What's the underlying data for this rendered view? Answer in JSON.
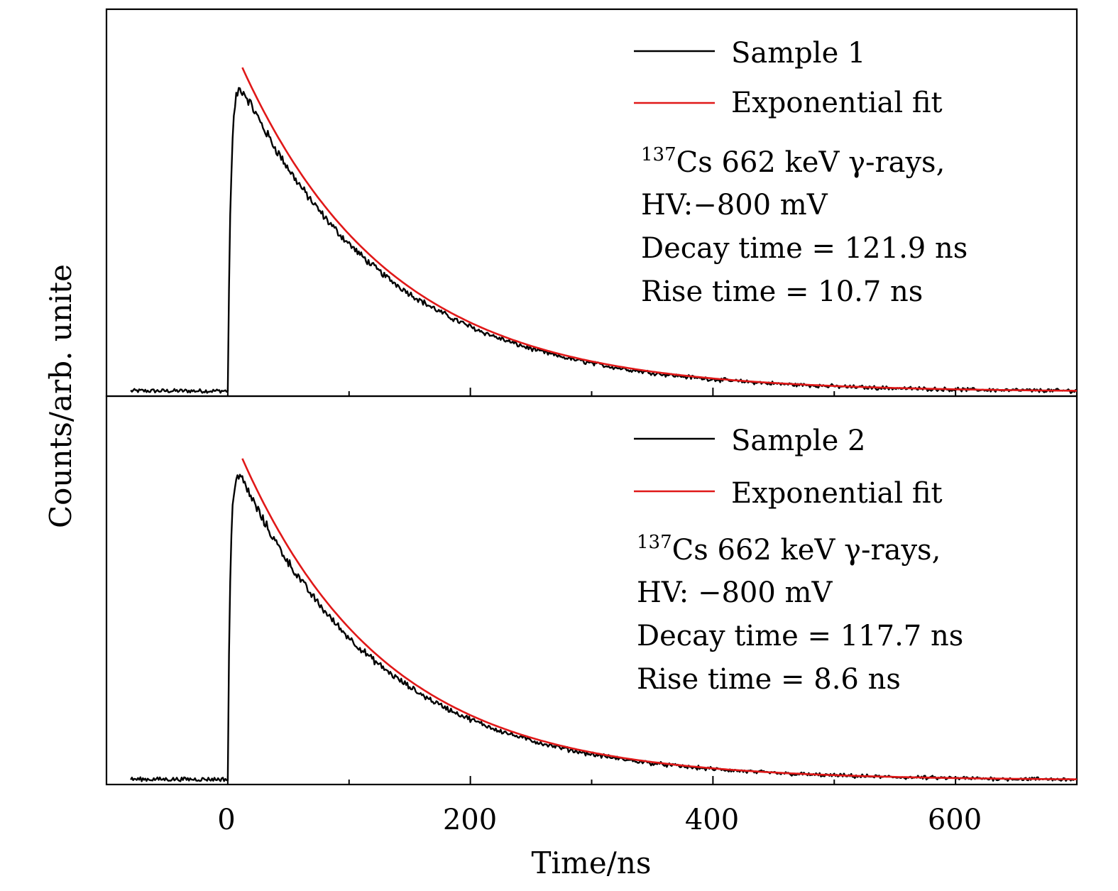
{
  "chart_data": {
    "type": "line",
    "xlabel": "Time/ns",
    "ylabel": "Counts/arb. unite",
    "xlim": [
      -100,
      700
    ],
    "xticks": [
      0,
      200,
      400,
      600
    ],
    "xtick_labels": [
      "0",
      "200",
      "400",
      "600"
    ],
    "x_minor_ticks": [
      100,
      300,
      500
    ],
    "ylim": [
      0,
      1
    ],
    "panels": [
      {
        "id": "top",
        "series": [
          {
            "name": "Sample 1",
            "color": "#000000",
            "kind": "measured",
            "baseline_start": -80,
            "onset": 0,
            "rise_time": 10.7,
            "decay_time": 121.9,
            "x_end": 700,
            "peak": 0.94
          },
          {
            "name": "Exponential fit",
            "color": "#e01818",
            "kind": "fit",
            "x_start": 12,
            "decay_time": 121.9,
            "x_end": 700,
            "start_value": 0.97
          }
        ],
        "annotation": {
          "source_sup": "137",
          "source_rest": "Cs 662 keV γ-rays,",
          "hv": "HV:−800 mV",
          "decay": "Decay time = 121.9 ns",
          "rise": "Rise time = 10.7 ns"
        }
      },
      {
        "id": "bottom",
        "series": [
          {
            "name": "Sample 2",
            "color": "#000000",
            "kind": "measured",
            "baseline_start": -80,
            "onset": 0,
            "rise_time": 8.6,
            "decay_time": 117.7,
            "x_end": 700,
            "peak": 0.93
          },
          {
            "name": "Exponential fit",
            "color": "#e01818",
            "kind": "fit",
            "x_start": 12,
            "decay_time": 117.7,
            "x_end": 700,
            "start_value": 0.96
          }
        ],
        "annotation": {
          "source_sup": "137",
          "source_rest": "Cs 662 keV γ-rays,",
          "hv": "HV: −800 mV",
          "decay": "Decay time = 117.7 ns",
          "rise": "Rise time = 8.6 ns"
        }
      }
    ]
  }
}
